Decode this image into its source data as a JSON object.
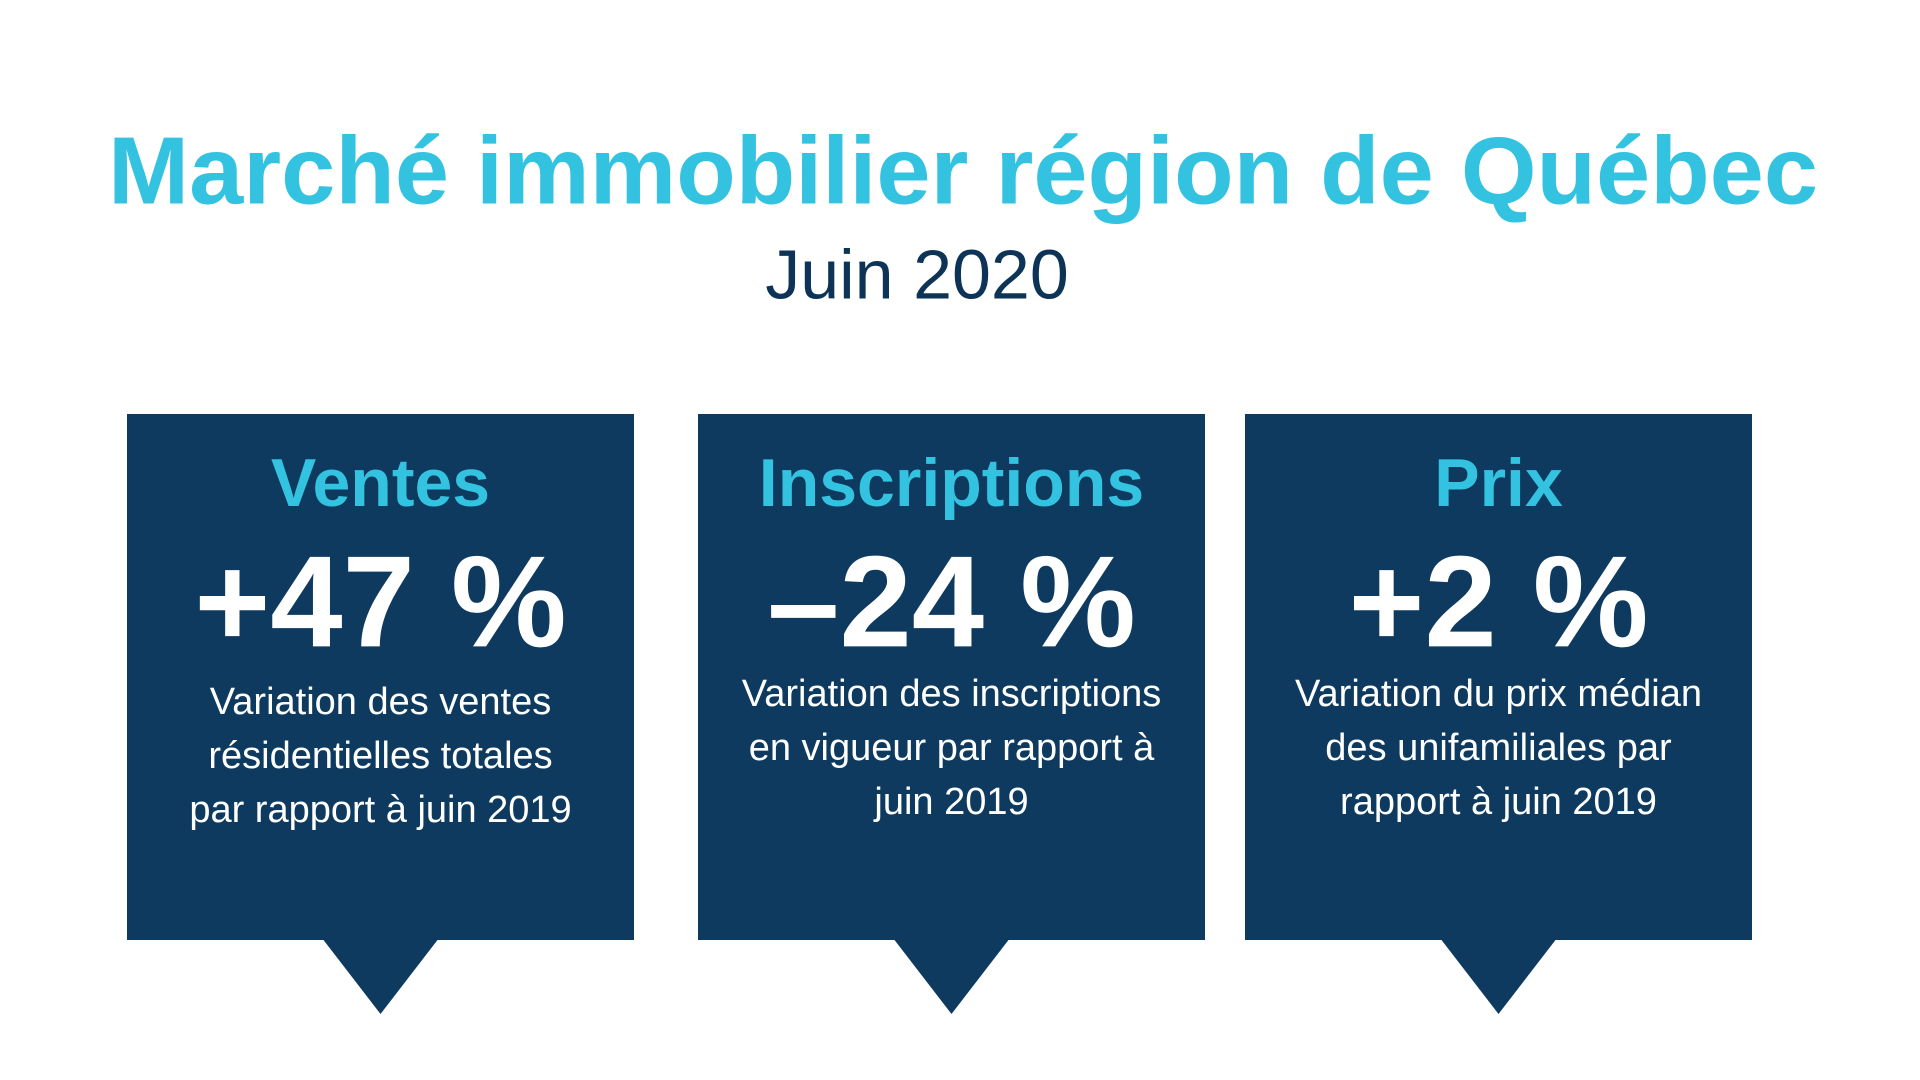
{
  "header": {
    "title": "Marché immobilier région de Québec",
    "subtitle": "Juin 2020"
  },
  "cards": [
    {
      "heading": "Ventes",
      "value": "+47 %",
      "description_lines": [
        "Variation des ventes",
        "résidentielles totales",
        "par rapport à juin 2019"
      ]
    },
    {
      "heading": "Inscriptions",
      "value": "–24 %",
      "description_lines": [
        "Variation des inscriptions",
        "en vigueur par rapport à",
        "juin 2019"
      ]
    },
    {
      "heading": "Prix",
      "value": "+2 %",
      "description_lines": [
        "Variation du prix médian",
        "des unifamiliales par",
        "rapport à juin 2019"
      ]
    }
  ]
}
